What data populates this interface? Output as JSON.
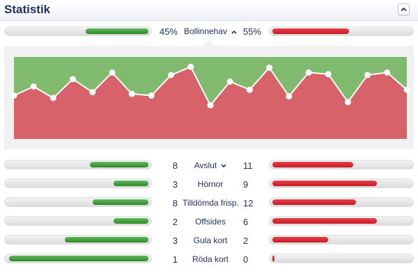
{
  "header": {
    "title": "Statistik",
    "collapse_icon": "chevron-up-icon"
  },
  "possession": {
    "label": "Bollinnehav",
    "home": "45%",
    "away": "55%",
    "home_fraction": 0.45,
    "away_fraction": 0.55,
    "toggle_icon": "chevron-up-icon"
  },
  "colors": {
    "home": "#3d9a38",
    "away": "#d8232e",
    "title": "#1f3160",
    "graph_home": "#7fba6f",
    "graph_away": "#d7626a"
  },
  "graph": {
    "momentum": [
      0.53,
      0.64,
      0.5,
      0.73,
      0.57,
      0.81,
      0.55,
      0.53,
      0.78,
      0.88,
      0.41,
      0.7,
      0.6,
      0.87,
      0.52,
      0.81,
      0.79,
      0.45,
      0.78,
      0.81,
      0.6
    ]
  },
  "stats": [
    {
      "label": "Avslut",
      "home": "8",
      "away": "11",
      "home_fraction": 0.42,
      "away_fraction": 0.58,
      "expandable": true
    },
    {
      "label": "Hörnor",
      "home": "3",
      "away": "9",
      "home_fraction": 0.25,
      "away_fraction": 0.75
    },
    {
      "label": "Tilldömda frisp.",
      "home": "8",
      "away": "12",
      "home_fraction": 0.4,
      "away_fraction": 0.6
    },
    {
      "label": "Offsides",
      "home": "2",
      "away": "6",
      "home_fraction": 0.25,
      "away_fraction": 0.75
    },
    {
      "label": "Gula kort",
      "home": "3",
      "away": "2",
      "home_fraction": 0.6,
      "away_fraction": 0.4
    },
    {
      "label": "Röda kort",
      "home": "1",
      "away": "0",
      "home_fraction": 1.0,
      "away_fraction": 0.0
    }
  ]
}
